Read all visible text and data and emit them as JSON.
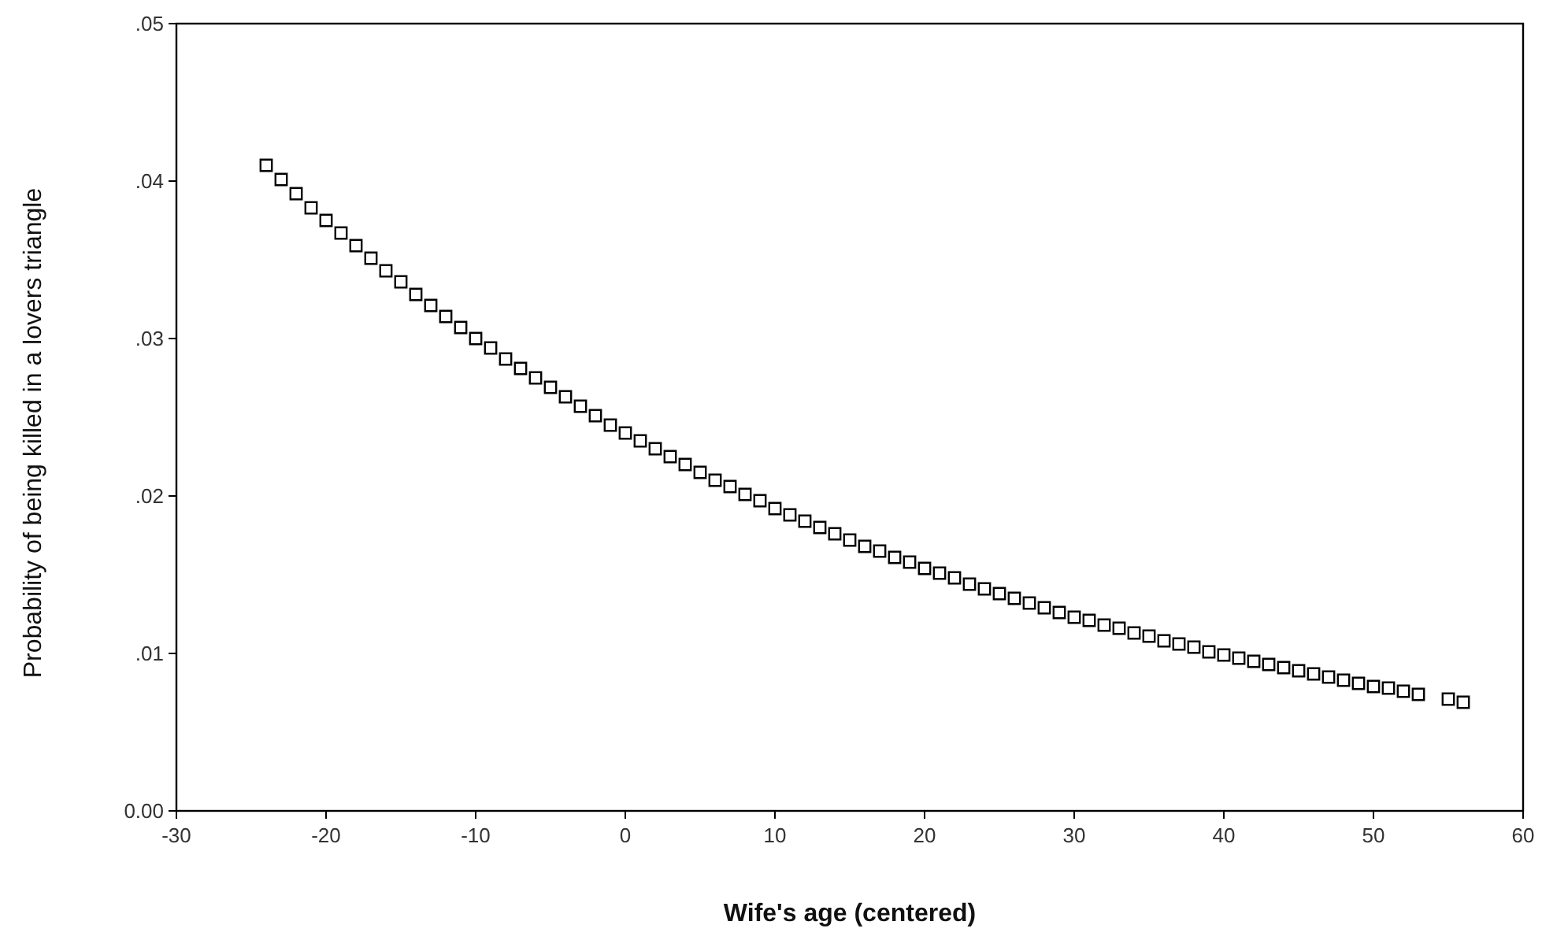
{
  "chart_data": {
    "type": "scatter",
    "xlabel": "Wife's age (centered)",
    "ylabel": "Probability of being killed in a lovers triangle",
    "marker": "square",
    "grid": false,
    "xlim": [
      -30,
      60
    ],
    "xticks": [
      -30,
      -20,
      -10,
      0,
      10,
      20,
      30,
      40,
      50,
      60
    ],
    "ylim": [
      0,
      0.05
    ],
    "yticks": [
      {
        "value": 0,
        "label": "0.00"
      },
      {
        "value": 0.01,
        "label": ".01"
      },
      {
        "value": 0.02,
        "label": ".02"
      },
      {
        "value": 0.03,
        "label": ".03"
      },
      {
        "value": 0.04,
        "label": ".04"
      },
      {
        "value": 0.05,
        "label": ".05"
      }
    ],
    "series": [
      {
        "color": "#000000",
        "x": [
          -24,
          -23,
          -22,
          -21,
          -20,
          -19,
          -18,
          -17,
          -16,
          -15,
          -14,
          -13,
          -12,
          -11,
          -10,
          -9,
          -8,
          -7,
          -6,
          -5,
          -4,
          -3,
          -2,
          -1,
          0,
          1,
          2,
          3,
          4,
          5,
          6,
          7,
          8,
          9,
          10,
          11,
          12,
          13,
          14,
          15,
          16,
          17,
          18,
          19,
          20,
          21,
          22,
          23,
          24,
          25,
          26,
          27,
          28,
          29,
          30,
          31,
          32,
          33,
          34,
          35,
          36,
          37,
          38,
          39,
          40,
          41,
          42,
          43,
          44,
          45,
          46,
          47,
          48,
          49,
          50,
          51,
          52,
          53,
          55,
          56
        ],
        "values": [
          0.041,
          0.0401,
          0.0392,
          0.0383,
          0.0375,
          0.0367,
          0.0359,
          0.0351,
          0.0343,
          0.0336,
          0.0328,
          0.0321,
          0.0314,
          0.0307,
          0.03,
          0.0294,
          0.0287,
          0.0281,
          0.0275,
          0.0269,
          0.0263,
          0.0257,
          0.0251,
          0.0245,
          0.024,
          0.0235,
          0.023,
          0.0225,
          0.022,
          0.0215,
          0.021,
          0.0206,
          0.0201,
          0.0197,
          0.0192,
          0.0188,
          0.0184,
          0.018,
          0.0176,
          0.0172,
          0.0168,
          0.0165,
          0.0161,
          0.0158,
          0.0154,
          0.0151,
          0.0148,
          0.0144,
          0.0141,
          0.0138,
          0.0135,
          0.0132,
          0.0129,
          0.0126,
          0.0123,
          0.0121,
          0.0118,
          0.0116,
          0.0113,
          0.0111,
          0.0108,
          0.0106,
          0.0104,
          0.0101,
          0.0099,
          0.0097,
          0.0095,
          0.0093,
          0.0091,
          0.0089,
          0.0087,
          0.0085,
          0.0083,
          0.0081,
          0.0079,
          0.0078,
          0.0076,
          0.0074,
          0.0071,
          0.0069
        ]
      }
    ]
  }
}
